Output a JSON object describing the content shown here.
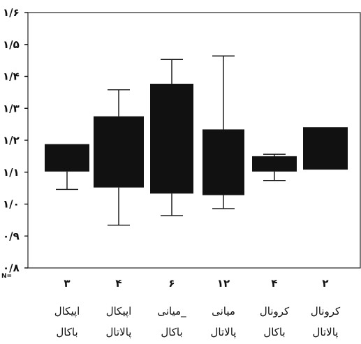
{
  "chart_data": {
    "type": "box",
    "y_ticks": [
      {
        "value": 0.8,
        "label": "۰/۸"
      },
      {
        "value": 0.9,
        "label": "۰/۹"
      },
      {
        "value": 1.0,
        "label": "۱/۰"
      },
      {
        "value": 1.1,
        "label": "۱/۱"
      },
      {
        "value": 1.2,
        "label": "۱/۲"
      },
      {
        "value": 1.3,
        "label": "۱/۳"
      },
      {
        "value": 1.4,
        "label": "۱/۴"
      },
      {
        "value": 1.5,
        "label": "۱/۵"
      },
      {
        "value": 1.6,
        "label": "۱/۶"
      }
    ],
    "ylim": [
      0.8,
      1.6
    ],
    "grid": false,
    "n_label": "N=",
    "categories": [
      {
        "n": "۳",
        "line1": "اپیکال",
        "line2": "باکال",
        "whisker_low": 1.046,
        "q1": 1.102,
        "q3": 1.188,
        "whisker_high": 1.188
      },
      {
        "n": "۴",
        "line1": "اپیکال",
        "line2": "پالاتال",
        "whisker_low": 0.934,
        "q1": 1.052,
        "q3": 1.275,
        "whisker_high": 1.358
      },
      {
        "n": "۶",
        "line1": "_میانی",
        "line2": "باکال",
        "whisker_low": 0.964,
        "q1": 1.033,
        "q3": 1.377,
        "whisker_high": 1.453
      },
      {
        "n": "۱۲",
        "line1": "میانی",
        "line2": "پالاتال",
        "whisker_low": 0.986,
        "q1": 1.028,
        "q3": 1.234,
        "whisker_high": 1.464
      },
      {
        "n": "۴",
        "line1": "کرونال",
        "line2": "باکال",
        "whisker_low": 1.074,
        "q1": 1.102,
        "q3": 1.15,
        "whisker_high": 1.156
      },
      {
        "n": "۲",
        "line1": "کرونال",
        "line2": "پالاتال",
        "whisker_low": 1.108,
        "q1": 1.108,
        "q3": 1.241,
        "whisker_high": 1.241
      }
    ],
    "colors": {
      "box_fill": "#111111",
      "axis": "#111111",
      "frame": "#222222"
    }
  }
}
